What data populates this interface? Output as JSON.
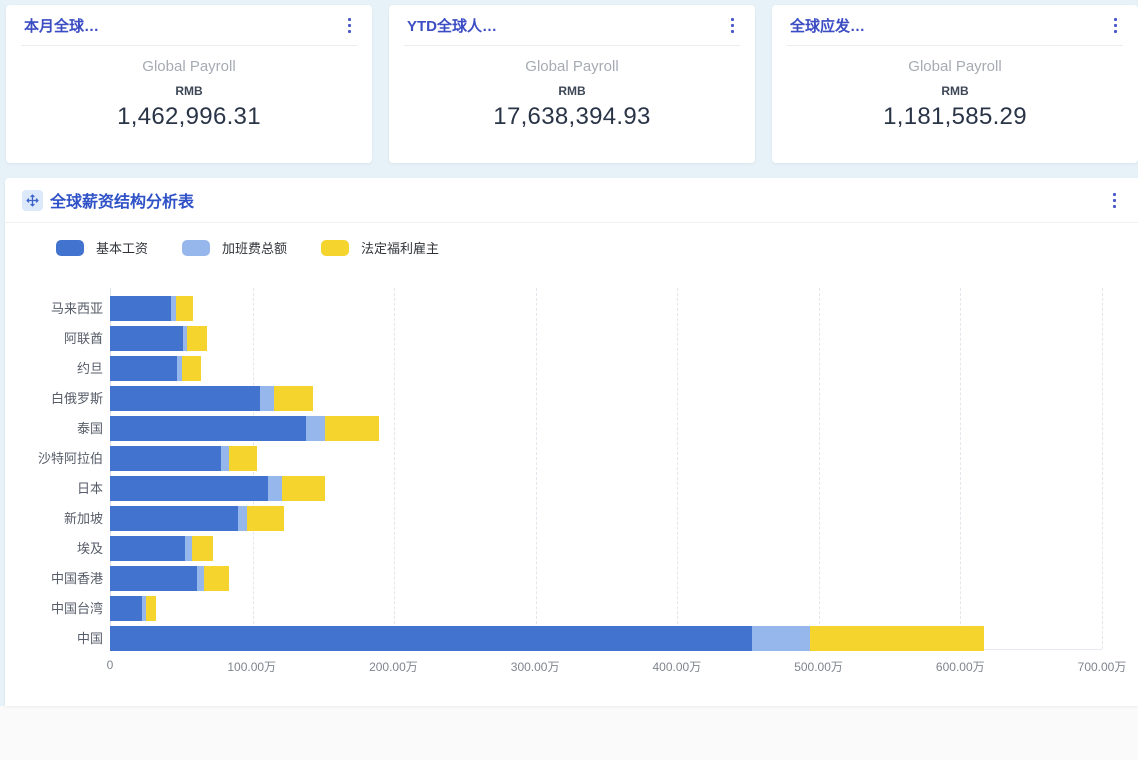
{
  "page": {
    "background": "#FAFAFA",
    "canvas_background": "#E7F2F8",
    "accent_blue": "#3C4DC4"
  },
  "cards": [
    {
      "title": "本月全球…",
      "subtitle": "Global Payroll",
      "currency_label": "RMB",
      "value": "1,462,996.31",
      "menu_icon": "kebab-menu-icon"
    },
    {
      "title": "YTD全球人…",
      "subtitle": "Global Payroll",
      "currency_label": "RMB",
      "value": "17,638,394.93",
      "menu_icon": "kebab-menu-icon"
    },
    {
      "title": "全球应发…",
      "subtitle": "Global Payroll",
      "currency_label": "RMB",
      "value": "1,181,585.29",
      "menu_icon": "kebab-menu-icon"
    }
  ],
  "chart_panel": {
    "title": "全球薪资结构分析表",
    "title_icon": "move-icon",
    "menu_icon": "kebab-menu-icon"
  },
  "chart_data": {
    "type": "bar",
    "orientation": "horizontal",
    "stacked": true,
    "value_unit": "万 RMB",
    "categories": [
      "马来西亚",
      "阿联酋",
      "约旦",
      "白俄罗斯",
      "泰国",
      "沙特阿拉伯",
      "日本",
      "新加坡",
      "埃及",
      "中国香港",
      "中国台湾",
      "中国"
    ],
    "series": [
      {
        "name": "基本工资",
        "color": "#4273CE",
        "values": [
          43,
          51.5,
          47.5,
          106,
          138.5,
          78,
          111.5,
          90,
          53,
          61.5,
          22.5,
          453
        ]
      },
      {
        "name": "加班费总额",
        "color": "#96B7EC",
        "values": [
          3.5,
          3,
          3.5,
          9.5,
          13.5,
          6,
          10,
          7,
          5,
          5,
          3,
          41
        ]
      },
      {
        "name": "法定福利雇主",
        "color": "#F6D42E",
        "values": [
          12,
          14,
          13.5,
          28,
          37.5,
          20,
          30.5,
          25.5,
          15,
          17.5,
          7,
          123
        ]
      }
    ],
    "xlim": [
      0,
      700
    ],
    "x_tick_labels": [
      "0",
      "100.00万",
      "200.00万",
      "300.00万",
      "400.00万",
      "500.00万",
      "600.00万",
      "700.00万"
    ],
    "grid": true,
    "legend_position": "top-left"
  }
}
